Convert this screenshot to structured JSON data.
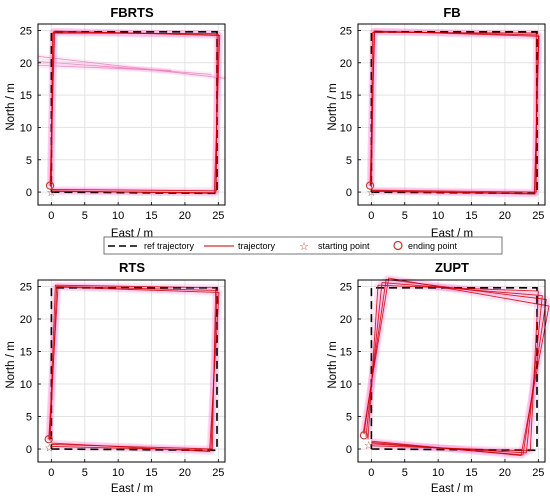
{
  "legend": {
    "entries": [
      {
        "label": "ref trajectory",
        "style": "dashed",
        "color": "#000000"
      },
      {
        "label": "trajectory",
        "style": "line",
        "color": "#e05050"
      },
      {
        "label": "starting point",
        "style": "star",
        "color": "#c0392b"
      },
      {
        "label": "ending point",
        "style": "circle",
        "color": "#c0392b"
      }
    ]
  },
  "colors": {
    "reference": "#000000",
    "trajectory": "#cc0000",
    "halo": "#ff66cc",
    "grid": "#e3e3e3"
  },
  "chart_data": [
    {
      "type": "line",
      "title": "FBRTS",
      "xlabel": "East / m",
      "ylabel": "North / m",
      "xlim": [
        -2,
        26
      ],
      "ylim": [
        -2,
        26
      ],
      "xticks": [
        0,
        5,
        10,
        15,
        20,
        25
      ],
      "yticks": [
        0,
        5,
        10,
        15,
        20,
        25
      ],
      "grid": true,
      "start": [
        0,
        0
      ],
      "end": [
        -0.2,
        1.0
      ],
      "reference": [
        [
          0,
          0
        ],
        [
          24.8,
          -0.2
        ],
        [
          24.8,
          24.8
        ],
        [
          0,
          24.8
        ],
        [
          0,
          0
        ]
      ],
      "trajectories": [
        [
          [
            0,
            0.1
          ],
          [
            24.6,
            -0.1
          ],
          [
            25.0,
            24.4
          ],
          [
            0.3,
            24.8
          ],
          [
            0.0,
            0.6
          ]
        ],
        [
          [
            0,
            0.4
          ],
          [
            24.7,
            0.2
          ],
          [
            24.8,
            24.5
          ],
          [
            0.2,
            24.6
          ],
          [
            -0.1,
            0.8
          ]
        ],
        [
          [
            0,
            0.2
          ],
          [
            24.4,
            -0.2
          ],
          [
            25.2,
            24.2
          ],
          [
            0.5,
            24.9
          ],
          [
            -0.2,
            1.0
          ]
        ]
      ],
      "stray_lines": [
        [
          [
            -2,
            21.0
          ],
          [
            26,
            17.6
          ]
        ],
        [
          [
            -2,
            20.2
          ],
          [
            24,
            18.2
          ]
        ],
        [
          [
            -2,
            19.6
          ],
          [
            18,
            18.8
          ]
        ]
      ]
    },
    {
      "type": "line",
      "title": "FB",
      "xlabel": "East / m",
      "ylabel": "North / m",
      "xlim": [
        -2,
        26
      ],
      "ylim": [
        -2,
        26
      ],
      "xticks": [
        0,
        5,
        10,
        15,
        20,
        25
      ],
      "yticks": [
        0,
        5,
        10,
        15,
        20,
        25
      ],
      "grid": true,
      "start": [
        0,
        0
      ],
      "end": [
        -0.2,
        1.0
      ],
      "reference": [
        [
          0,
          0
        ],
        [
          24.8,
          -0.2
        ],
        [
          24.8,
          24.8
        ],
        [
          0,
          24.8
        ],
        [
          0,
          0
        ]
      ],
      "trajectories": [
        [
          [
            0,
            0.1
          ],
          [
            24.5,
            -0.3
          ],
          [
            25.0,
            24.3
          ],
          [
            0.4,
            24.9
          ],
          [
            0.0,
            0.7
          ]
        ],
        [
          [
            0,
            0.3
          ],
          [
            24.7,
            0.0
          ],
          [
            24.7,
            24.6
          ],
          [
            0.2,
            24.7
          ],
          [
            -0.1,
            0.9
          ]
        ],
        [
          [
            0,
            0.2
          ],
          [
            24.4,
            -0.2
          ],
          [
            25.1,
            24.1
          ],
          [
            0.5,
            24.9
          ],
          [
            -0.2,
            1.0
          ]
        ]
      ],
      "stray_lines": []
    },
    {
      "type": "line",
      "title": "RTS",
      "xlabel": "East / m",
      "ylabel": "North / m",
      "xlim": [
        -2,
        26
      ],
      "ylim": [
        -2,
        26
      ],
      "xticks": [
        0,
        5,
        10,
        15,
        20,
        25
      ],
      "yticks": [
        0,
        5,
        10,
        15,
        20,
        25
      ],
      "grid": true,
      "start": [
        -0.3,
        0.2
      ],
      "end": [
        -0.4,
        1.5
      ],
      "reference": [
        [
          0,
          0
        ],
        [
          24.8,
          -0.2
        ],
        [
          24.8,
          24.8
        ],
        [
          0,
          24.8
        ],
        [
          0,
          0
        ]
      ],
      "trajectories": [
        [
          [
            0,
            0.4
          ],
          [
            23.9,
            -0.2
          ],
          [
            24.8,
            24.4
          ],
          [
            0.8,
            25.0
          ],
          [
            -0.2,
            1.2
          ]
        ],
        [
          [
            0,
            0.7
          ],
          [
            24.1,
            0.0
          ],
          [
            24.6,
            24.8
          ],
          [
            0.6,
            25.2
          ],
          [
            -0.3,
            1.4
          ]
        ],
        [
          [
            0,
            0.9
          ],
          [
            23.7,
            -0.4
          ],
          [
            25.1,
            24.1
          ],
          [
            1.0,
            24.9
          ],
          [
            -0.4,
            1.5
          ]
        ]
      ],
      "stray_lines": []
    },
    {
      "type": "line",
      "title": "ZUPT",
      "xlabel": "East / m",
      "ylabel": "North / m",
      "xlim": [
        -2,
        26
      ],
      "ylim": [
        -2,
        26
      ],
      "xticks": [
        0,
        5,
        10,
        15,
        20,
        25
      ],
      "yticks": [
        0,
        5,
        10,
        15,
        20,
        25
      ],
      "grid": true,
      "start": [
        -0.4,
        0.6
      ],
      "end": [
        -1.1,
        2.1
      ],
      "reference": [
        [
          0,
          0
        ],
        [
          24.8,
          -0.2
        ],
        [
          24.8,
          24.8
        ],
        [
          0,
          24.8
        ],
        [
          0,
          0
        ]
      ],
      "trajectories": [
        [
          [
            0,
            0.5
          ],
          [
            23.8,
            -0.3
          ],
          [
            25.0,
            24.3
          ],
          [
            1.0,
            25.2
          ],
          [
            -0.5,
            1.5
          ]
        ],
        [
          [
            0,
            0.8
          ],
          [
            23.2,
            -0.6
          ],
          [
            25.6,
            23.6
          ],
          [
            1.6,
            25.6
          ],
          [
            -0.8,
            1.9
          ]
        ],
        [
          [
            0,
            1.0
          ],
          [
            22.7,
            -0.9
          ],
          [
            26.2,
            23.0
          ],
          [
            2.2,
            26.1
          ],
          [
            -1.1,
            2.3
          ]
        ],
        [
          [
            0,
            1.2
          ],
          [
            22.4,
            -1.0
          ],
          [
            26.6,
            22.0
          ],
          [
            2.6,
            26.3
          ],
          [
            -1.2,
            2.5
          ]
        ]
      ],
      "stray_lines": []
    }
  ]
}
